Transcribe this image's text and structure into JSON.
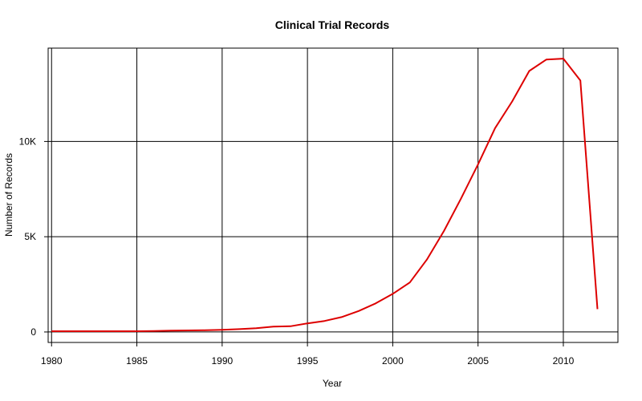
{
  "chart_data": {
    "type": "line",
    "title": "Clinical Trial Records",
    "xlabel": "Year",
    "ylabel": "Number of Records",
    "xlim": [
      1979.8,
      2013.2
    ],
    "ylim": [
      -550,
      14900
    ],
    "x_ticks": [
      1980,
      1985,
      1990,
      1995,
      2000,
      2005,
      2010
    ],
    "x_tick_labels": [
      "1980",
      "1985",
      "1990",
      "1995",
      "2000",
      "2005",
      "2010"
    ],
    "y_ticks": [
      0,
      5000,
      10000
    ],
    "y_tick_labels": [
      "0",
      "5K",
      "10K"
    ],
    "grid": true,
    "line_color": "#dd0000",
    "grid_color": "#000000",
    "series": [
      {
        "x": [
          1980,
          1981,
          1982,
          1983,
          1984,
          1985,
          1986,
          1987,
          1988,
          1989,
          1990,
          1991,
          1992,
          1993,
          1994,
          1995,
          1996,
          1997,
          1998,
          1999,
          2000,
          2001,
          2002,
          2003,
          2004,
          2005,
          2006,
          2007,
          2008,
          2009,
          2010,
          2011,
          2012
        ],
        "values": [
          40,
          40,
          40,
          40,
          40,
          40,
          50,
          70,
          80,
          90,
          110,
          150,
          200,
          280,
          300,
          450,
          580,
          780,
          1100,
          1500,
          2000,
          2600,
          3800,
          5300,
          7000,
          8800,
          10700,
          12100,
          13700,
          14300,
          14350,
          13200,
          1200
        ]
      }
    ]
  }
}
